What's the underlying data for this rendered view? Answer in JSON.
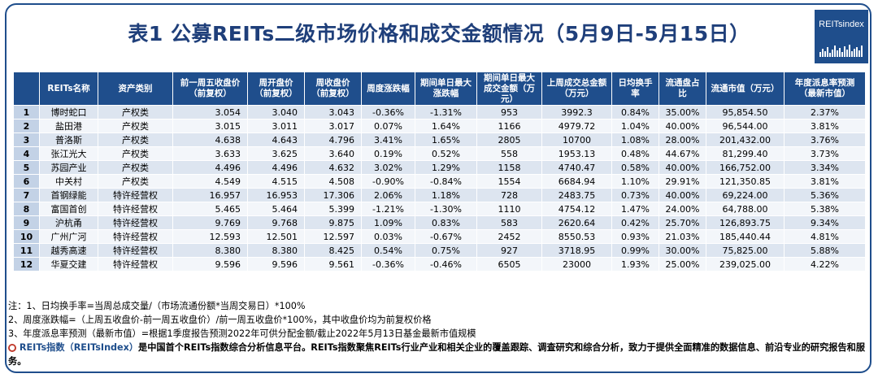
{
  "title": "表1 公募REITs二级市场价格和成交金额情况（5月9日-5月15日）",
  "logo": {
    "text": "REITsindex",
    "icon": "bar-chart-icon"
  },
  "table": {
    "headers": [
      "",
      "REITs名称",
      "资产类别",
      "前一周五收盘价（前复权）",
      "周开盘价（前复权）",
      "周收盘价（前复权）",
      "周度涨跌幅",
      "期间单日最大涨跌幅",
      "期间单日最大成交金额（万元）",
      "上周成交总金额（万元）",
      "日均换手率",
      "流通盘占比",
      "流通市值（万元）",
      "年度派息率预测（最新市值）"
    ],
    "rows": [
      [
        "1",
        "博时蛇口",
        "产权类",
        "3.054",
        "3.040",
        "3.043",
        "-0.36%",
        "-1.31%",
        "953",
        "3992.3",
        "0.84%",
        "35.00%",
        "95,854.50",
        "2.37%"
      ],
      [
        "2",
        "盐田港",
        "产权类",
        "3.015",
        "3.011",
        "3.017",
        "0.07%",
        "1.64%",
        "1166",
        "4979.72",
        "1.04%",
        "40.00%",
        "96,544.00",
        "3.81%"
      ],
      [
        "3",
        "普洛斯",
        "产权类",
        "4.638",
        "4.643",
        "4.796",
        "3.41%",
        "1.65%",
        "2805",
        "10700",
        "1.08%",
        "28.00%",
        "201,432.00",
        "3.76%"
      ],
      [
        "4",
        "张江光大",
        "产权类",
        "3.633",
        "3.625",
        "3.640",
        "0.19%",
        "0.52%",
        "558",
        "1953.13",
        "0.48%",
        "44.67%",
        "81,299.40",
        "3.73%"
      ],
      [
        "5",
        "苏园产业",
        "产权类",
        "4.496",
        "4.496",
        "4.632",
        "3.02%",
        "1.29%",
        "1158",
        "4740.47",
        "0.58%",
        "40.00%",
        "166,752.00",
        "3.34%"
      ],
      [
        "6",
        "中关村",
        "产权类",
        "4.549",
        "4.515",
        "4.508",
        "-0.90%",
        "-0.84%",
        "1554",
        "6684.94",
        "1.10%",
        "29.91%",
        "121,350.85",
        "3.81%"
      ],
      [
        "7",
        "首钢绿能",
        "特许经营权",
        "16.957",
        "16.953",
        "17.306",
        "2.06%",
        "1.18%",
        "728",
        "2483.75",
        "0.73%",
        "40.00%",
        "69,224.00",
        "5.36%"
      ],
      [
        "8",
        "富国首创",
        "特许经营权",
        "5.465",
        "5.464",
        "5.399",
        "-1.21%",
        "-1.30%",
        "1110",
        "4754.12",
        "1.47%",
        "24.00%",
        "64,788.00",
        "5.38%"
      ],
      [
        "9",
        "沪杭甬",
        "特许经营权",
        "9.769",
        "9.768",
        "9.875",
        "1.09%",
        "0.83%",
        "583",
        "2620.64",
        "0.42%",
        "25.70%",
        "126,893.75",
        "9.34%"
      ],
      [
        "10",
        "广州广河",
        "特许经营权",
        "12.593",
        "12.501",
        "12.597",
        "0.03%",
        "-0.67%",
        "2452",
        "8550.53",
        "0.93%",
        "21.03%",
        "185,440.44",
        "4.81%"
      ],
      [
        "11",
        "越秀高速",
        "特许经营权",
        "8.380",
        "8.380",
        "8.425",
        "0.54%",
        "0.75%",
        "927",
        "3718.95",
        "0.99%",
        "30.00%",
        "75,825.00",
        "5.88%"
      ],
      [
        "12",
        "华夏交建",
        "特许经营权",
        "9.596",
        "9.596",
        "9.561",
        "-0.36%",
        "-0.46%",
        "6505",
        "23000",
        "1.93%",
        "25.00%",
        "239,025.00",
        "4.22%"
      ]
    ]
  },
  "notes": {
    "line1": "注：1、日均换手率=当周总成交量/（市场流通份额*当周交易日）*100%",
    "line2": "2、周度涨跌幅=（上周五收盘价-前一周五收盘价）/前一周五收盘价*100%，其中收盘价均为前复权价格",
    "line3": "3、年度派息率预测（最新市值）=根据1季度报告预测2022年可供分配金额/截止2022年5月13日基金最新市值规模",
    "brand": "REITs指数（REITsIndex）",
    "about": "是中国首个REITs指数综合分析信息平台。REITs指数聚焦REITs行业产业和相关企业的覆盖跟踪、调查研究和综合分析，致力于提供全面精准的数据信息、前沿专业的研究报告和服务。"
  }
}
